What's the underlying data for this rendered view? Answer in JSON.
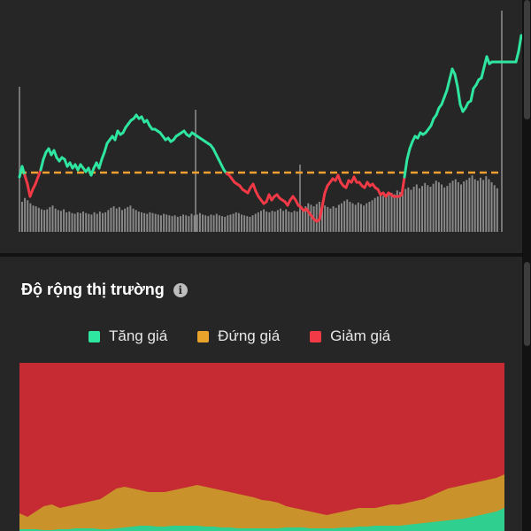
{
  "colors": {
    "up": "#2ee6a0",
    "flat": "#e9a22a",
    "down": "#f23a47",
    "reference": "#f0a030",
    "volume": "#8a8a8a"
  },
  "price_chart": {
    "reference_level": 135,
    "price_series": [
      [
        0,
        130
      ],
      [
        3,
        142
      ],
      [
        6,
        132
      ],
      [
        9,
        122
      ],
      [
        12,
        108
      ],
      [
        15,
        116
      ],
      [
        18,
        122
      ],
      [
        21,
        130
      ],
      [
        24,
        138
      ],
      [
        27,
        150
      ],
      [
        30,
        158
      ],
      [
        33,
        162
      ],
      [
        36,
        155
      ],
      [
        39,
        160
      ],
      [
        42,
        152
      ],
      [
        45,
        148
      ],
      [
        48,
        152
      ],
      [
        51,
        150
      ],
      [
        54,
        142
      ],
      [
        57,
        146
      ],
      [
        60,
        140
      ],
      [
        63,
        144
      ],
      [
        66,
        138
      ],
      [
        69,
        144
      ],
      [
        72,
        140
      ],
      [
        75,
        136
      ],
      [
        78,
        140
      ],
      [
        81,
        132
      ],
      [
        84,
        140
      ],
      [
        87,
        146
      ],
      [
        90,
        140
      ],
      [
        93,
        150
      ],
      [
        96,
        158
      ],
      [
        99,
        168
      ],
      [
        102,
        172
      ],
      [
        105,
        176
      ],
      [
        108,
        172
      ],
      [
        111,
        182
      ],
      [
        114,
        178
      ],
      [
        117,
        180
      ],
      [
        120,
        186
      ],
      [
        123,
        190
      ],
      [
        126,
        194
      ],
      [
        129,
        196
      ],
      [
        132,
        200
      ],
      [
        135,
        196
      ],
      [
        138,
        198
      ],
      [
        141,
        192
      ],
      [
        144,
        194
      ],
      [
        147,
        188
      ],
      [
        150,
        184
      ],
      [
        153,
        184
      ],
      [
        156,
        182
      ],
      [
        159,
        180
      ],
      [
        162,
        176
      ],
      [
        165,
        172
      ],
      [
        168,
        174
      ],
      [
        171,
        170
      ],
      [
        174,
        172
      ],
      [
        177,
        176
      ],
      [
        180,
        178
      ],
      [
        183,
        180
      ],
      [
        186,
        182
      ],
      [
        189,
        178
      ],
      [
        192,
        176
      ],
      [
        195,
        180
      ],
      [
        198,
        178
      ],
      [
        201,
        176
      ],
      [
        204,
        174
      ],
      [
        207,
        172
      ],
      [
        210,
        170
      ],
      [
        213,
        168
      ],
      [
        216,
        166
      ],
      [
        219,
        162
      ],
      [
        222,
        156
      ],
      [
        225,
        150
      ],
      [
        228,
        144
      ],
      [
        231,
        138
      ],
      [
        234,
        134
      ],
      [
        237,
        132
      ],
      [
        240,
        128
      ],
      [
        243,
        124
      ],
      [
        246,
        122
      ],
      [
        249,
        120
      ],
      [
        252,
        116
      ],
      [
        255,
        114
      ],
      [
        258,
        112
      ],
      [
        261,
        118
      ],
      [
        264,
        122
      ],
      [
        267,
        114
      ],
      [
        270,
        108
      ],
      [
        273,
        104
      ],
      [
        276,
        100
      ],
      [
        279,
        102
      ],
      [
        282,
        110
      ],
      [
        285,
        104
      ],
      [
        288,
        108
      ],
      [
        291,
        110
      ],
      [
        294,
        106
      ],
      [
        297,
        104
      ],
      [
        300,
        102
      ],
      [
        303,
        98
      ],
      [
        306,
        104
      ],
      [
        309,
        108
      ],
      [
        312,
        104
      ],
      [
        315,
        98
      ],
      [
        318,
        96
      ],
      [
        321,
        92
      ],
      [
        324,
        94
      ],
      [
        327,
        90
      ],
      [
        330,
        86
      ],
      [
        333,
        82
      ],
      [
        336,
        80
      ],
      [
        339,
        82
      ],
      [
        342,
        96
      ],
      [
        345,
        112
      ],
      [
        348,
        120
      ],
      [
        351,
        124
      ],
      [
        354,
        128
      ],
      [
        357,
        126
      ],
      [
        360,
        132
      ],
      [
        363,
        124
      ],
      [
        366,
        120
      ],
      [
        369,
        118
      ],
      [
        372,
        126
      ],
      [
        375,
        124
      ],
      [
        378,
        130
      ],
      [
        381,
        124
      ],
      [
        384,
        124
      ],
      [
        387,
        120
      ],
      [
        390,
        118
      ],
      [
        393,
        124
      ],
      [
        396,
        120
      ],
      [
        399,
        122
      ],
      [
        402,
        118
      ],
      [
        405,
        116
      ],
      [
        408,
        110
      ],
      [
        411,
        112
      ],
      [
        414,
        108
      ],
      [
        417,
        112
      ],
      [
        420,
        110
      ],
      [
        423,
        108
      ],
      [
        426,
        108
      ],
      [
        429,
        108
      ],
      [
        432,
        110
      ],
      [
        435,
        130
      ],
      [
        438,
        150
      ],
      [
        441,
        162
      ],
      [
        444,
        170
      ],
      [
        447,
        176
      ],
      [
        450,
        174
      ],
      [
        453,
        180
      ],
      [
        456,
        178
      ],
      [
        459,
        180
      ],
      [
        462,
        184
      ],
      [
        465,
        188
      ],
      [
        468,
        196
      ],
      [
        471,
        200
      ],
      [
        474,
        208
      ],
      [
        477,
        212
      ],
      [
        480,
        220
      ],
      [
        483,
        228
      ],
      [
        486,
        240
      ],
      [
        489,
        252
      ],
      [
        492,
        246
      ],
      [
        495,
        232
      ],
      [
        498,
        212
      ],
      [
        501,
        204
      ],
      [
        504,
        208
      ],
      [
        507,
        214
      ],
      [
        510,
        216
      ],
      [
        513,
        230
      ],
      [
        516,
        234
      ],
      [
        519,
        240
      ],
      [
        522,
        242
      ],
      [
        525,
        254
      ],
      [
        528,
        266
      ],
      [
        531,
        258
      ],
      [
        534,
        260
      ],
      [
        537,
        260
      ],
      [
        540,
        260
      ],
      [
        543,
        260
      ],
      [
        546,
        260
      ],
      [
        549,
        260
      ],
      [
        552,
        260
      ],
      [
        555,
        260
      ],
      [
        558,
        260
      ],
      [
        561,
        260
      ],
      [
        564,
        272
      ],
      [
        567,
        290
      ]
    ],
    "volume_series": [
      40,
      45,
      42,
      38,
      35,
      34,
      32,
      30,
      29,
      30,
      33,
      35,
      31,
      29,
      28,
      30,
      26,
      27,
      25,
      24,
      26,
      25,
      27,
      25,
      24,
      23,
      26,
      24,
      27,
      25,
      26,
      29,
      32,
      34,
      31,
      33,
      29,
      31,
      33,
      35,
      31,
      29,
      27,
      26,
      25,
      24,
      26,
      25,
      24,
      23,
      22,
      24,
      23,
      22,
      21,
      22,
      20,
      21,
      23,
      22,
      21,
      24,
      22,
      23,
      25,
      23,
      22,
      21,
      23,
      22,
      24,
      22,
      21,
      20,
      22,
      23,
      24,
      26,
      25,
      23,
      22,
      21,
      20,
      22,
      24,
      26,
      28,
      30,
      27,
      26,
      28,
      27,
      29,
      31,
      28,
      30,
      27,
      26,
      28,
      27,
      29,
      31,
      34,
      38,
      36,
      34,
      37,
      40,
      38,
      35,
      33,
      31,
      34,
      32,
      36,
      38,
      41,
      43,
      40,
      38,
      36,
      39,
      37,
      35,
      38,
      40,
      42,
      45,
      47,
      50,
      48,
      46,
      49,
      52,
      50,
      55,
      53,
      51,
      57,
      59,
      56,
      60,
      63,
      58,
      61,
      65,
      62,
      60,
      64,
      68,
      66,
      63,
      59,
      61,
      65,
      68,
      70,
      66,
      63,
      67,
      69,
      72,
      75,
      70,
      68,
      72,
      69,
      74,
      70,
      66,
      62,
      58
    ]
  },
  "breadth": {
    "title": "Độ rộng thị trường",
    "legend": [
      {
        "label": "Tăng giá",
        "color": "#2ee6a0"
      },
      {
        "label": "Đứng giá",
        "color": "#e9a22a"
      },
      {
        "label": "Giảm giá",
        "color": "#f23a47"
      }
    ],
    "up_series": [
      2,
      2,
      2,
      1,
      1,
      2,
      2,
      3,
      3,
      3,
      2,
      2,
      3,
      4,
      5,
      6,
      6,
      5,
      5,
      6,
      6,
      6,
      6,
      5,
      5,
      4,
      4,
      3,
      3,
      3,
      3,
      3,
      3,
      4,
      4,
      4,
      3,
      3,
      3,
      3,
      4,
      4,
      5,
      5,
      6,
      6,
      6,
      6,
      7,
      8,
      9,
      10,
      11,
      12,
      13,
      14,
      16,
      18,
      20,
      22,
      26
    ],
    "up_flat_series": [
      20,
      16,
      22,
      28,
      30,
      26,
      28,
      30,
      32,
      34,
      36,
      42,
      48,
      50,
      48,
      46,
      44,
      44,
      44,
      46,
      48,
      50,
      52,
      50,
      48,
      46,
      44,
      42,
      40,
      38,
      35,
      34,
      32,
      28,
      26,
      24,
      22,
      20,
      18,
      20,
      22,
      24,
      26,
      26,
      26,
      28,
      30,
      30,
      32,
      34,
      36,
      40,
      44,
      48,
      50,
      52,
      54,
      56,
      58,
      60,
      64
    ]
  }
}
